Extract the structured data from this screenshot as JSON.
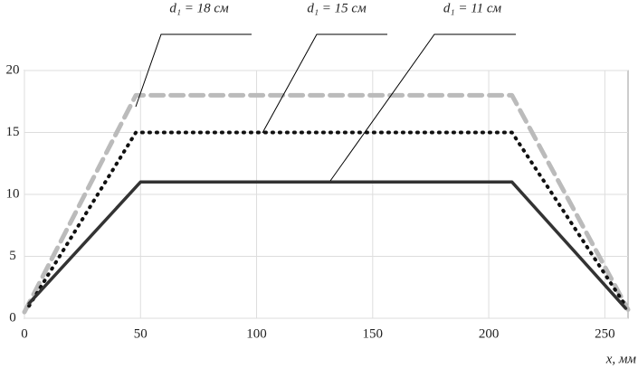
{
  "chart_data": {
    "type": "line",
    "x_label": "x, мм",
    "xlim": [
      0,
      260
    ],
    "xticks": [
      0,
      50,
      100,
      150,
      200,
      250
    ],
    "ylim": [
      0,
      20
    ],
    "yticks": [
      0,
      5,
      10,
      15,
      20
    ],
    "grid": true,
    "series": [
      {
        "name": "d₁ = 18 см",
        "color": "#bbbbbb",
        "style": "dashed",
        "x": [
          0,
          48,
          210,
          260
        ],
        "values": [
          0.5,
          18,
          18,
          0.7
        ]
      },
      {
        "name": "d₁ = 15 см",
        "color": "#111111",
        "style": "dotted",
        "x": [
          2,
          48,
          210,
          259
        ],
        "values": [
          1,
          15,
          15,
          1
        ]
      },
      {
        "name": "d₁ = 11 см",
        "color": "#333333",
        "style": "solid",
        "x": [
          2,
          50,
          210,
          259
        ],
        "values": [
          1.2,
          11,
          11,
          0.8
        ]
      }
    ]
  }
}
